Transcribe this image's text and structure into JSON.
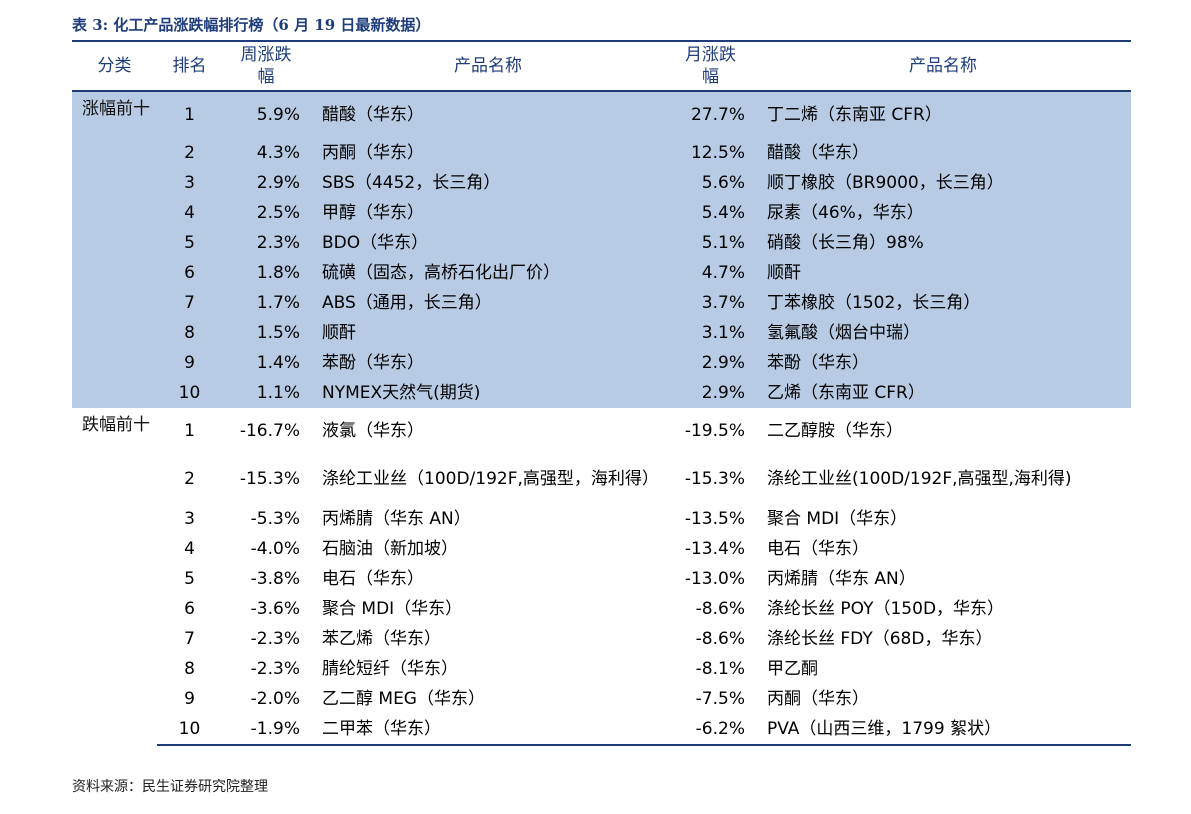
{
  "caption": "表 3:  化工产品涨跌幅排行榜（6 月 19 日最新数据）",
  "headers": {
    "category": "分类",
    "rank": "排名",
    "weekly": "周涨跌幅",
    "product_w": "产品名称",
    "monthly": "月涨跌幅",
    "product_m": "产品名称"
  },
  "rise": {
    "label": "涨幅前十",
    "rows": [
      {
        "rank": "1",
        "wpct": "5.9%",
        "wname": "醋酸（华东）",
        "mpct": "27.7%",
        "mname": "丁二烯（东南亚 CFR）"
      },
      {
        "rank": "2",
        "wpct": "4.3%",
        "wname": "丙酮（华东）",
        "mpct": "12.5%",
        "mname": "醋酸（华东）"
      },
      {
        "rank": "3",
        "wpct": "2.9%",
        "wname": "SBS（4452，长三角）",
        "mpct": "5.6%",
        "mname": "顺丁橡胶（BR9000，长三角）"
      },
      {
        "rank": "4",
        "wpct": "2.5%",
        "wname": "甲醇（华东）",
        "mpct": "5.4%",
        "mname": "尿素（46%，华东）"
      },
      {
        "rank": "5",
        "wpct": "2.3%",
        "wname": "BDO（华东）",
        "mpct": "5.1%",
        "mname": "硝酸（长三角）98%"
      },
      {
        "rank": "6",
        "wpct": "1.8%",
        "wname": "硫磺（固态，高桥石化出厂价）",
        "mpct": "4.7%",
        "mname": "顺酐"
      },
      {
        "rank": "7",
        "wpct": "1.7%",
        "wname": "ABS（通用，长三角）",
        "mpct": "3.7%",
        "mname": "丁苯橡胶（1502，长三角）"
      },
      {
        "rank": "8",
        "wpct": "1.5%",
        "wname": "顺酐",
        "mpct": "3.1%",
        "mname": "氢氟酸（烟台中瑞）"
      },
      {
        "rank": "9",
        "wpct": "1.4%",
        "wname": "苯酚（华东）",
        "mpct": "2.9%",
        "mname": "苯酚（华东）"
      },
      {
        "rank": "10",
        "wpct": "1.1%",
        "wname": "NYMEX天然气(期货)",
        "mpct": "2.9%",
        "mname": "乙烯（东南亚 CFR）"
      }
    ]
  },
  "fall": {
    "label": "跌幅前十",
    "rows": [
      {
        "rank": "1",
        "wpct": "-16.7%",
        "wname": "液氯（华东）",
        "mpct": "-19.5%",
        "mname": "二乙醇胺（华东）"
      },
      {
        "rank": "2",
        "wpct": "-15.3%",
        "wname": "涤纶工业丝（100D/192F,高强型，海利得）",
        "mpct": "-15.3%",
        "mname": "涤纶工业丝(100D/192F,高强型,海利得)"
      },
      {
        "rank": "3",
        "wpct": "-5.3%",
        "wname": "丙烯腈（华东 AN）",
        "mpct": "-13.5%",
        "mname": "聚合 MDI（华东）"
      },
      {
        "rank": "4",
        "wpct": "-4.0%",
        "wname": "石脑油（新加坡）",
        "mpct": "-13.4%",
        "mname": "电石（华东）"
      },
      {
        "rank": "5",
        "wpct": "-3.8%",
        "wname": "电石（华东）",
        "mpct": "-13.0%",
        "mname": "丙烯腈（华东 AN）"
      },
      {
        "rank": "6",
        "wpct": "-3.6%",
        "wname": "聚合 MDI（华东）",
        "mpct": "-8.6%",
        "mname": "涤纶长丝 POY（150D，华东）"
      },
      {
        "rank": "7",
        "wpct": "-2.3%",
        "wname": "苯乙烯（华东）",
        "mpct": "-8.6%",
        "mname": "涤纶长丝 FDY（68D，华东）"
      },
      {
        "rank": "8",
        "wpct": "-2.3%",
        "wname": "腈纶短纤（华东）",
        "mpct": "-8.1%",
        "mname": "甲乙酮"
      },
      {
        "rank": "9",
        "wpct": "-2.0%",
        "wname": "乙二醇 MEG（华东）",
        "mpct": "-7.5%",
        "mname": "丙酮（华东）"
      },
      {
        "rank": "10",
        "wpct": "-1.9%",
        "wname": "二甲苯（华东）",
        "mpct": "-6.2%",
        "mname": "PVA（山西三维，1799 絮状）"
      }
    ]
  },
  "source": "资料来源：民生证券研究院整理"
}
